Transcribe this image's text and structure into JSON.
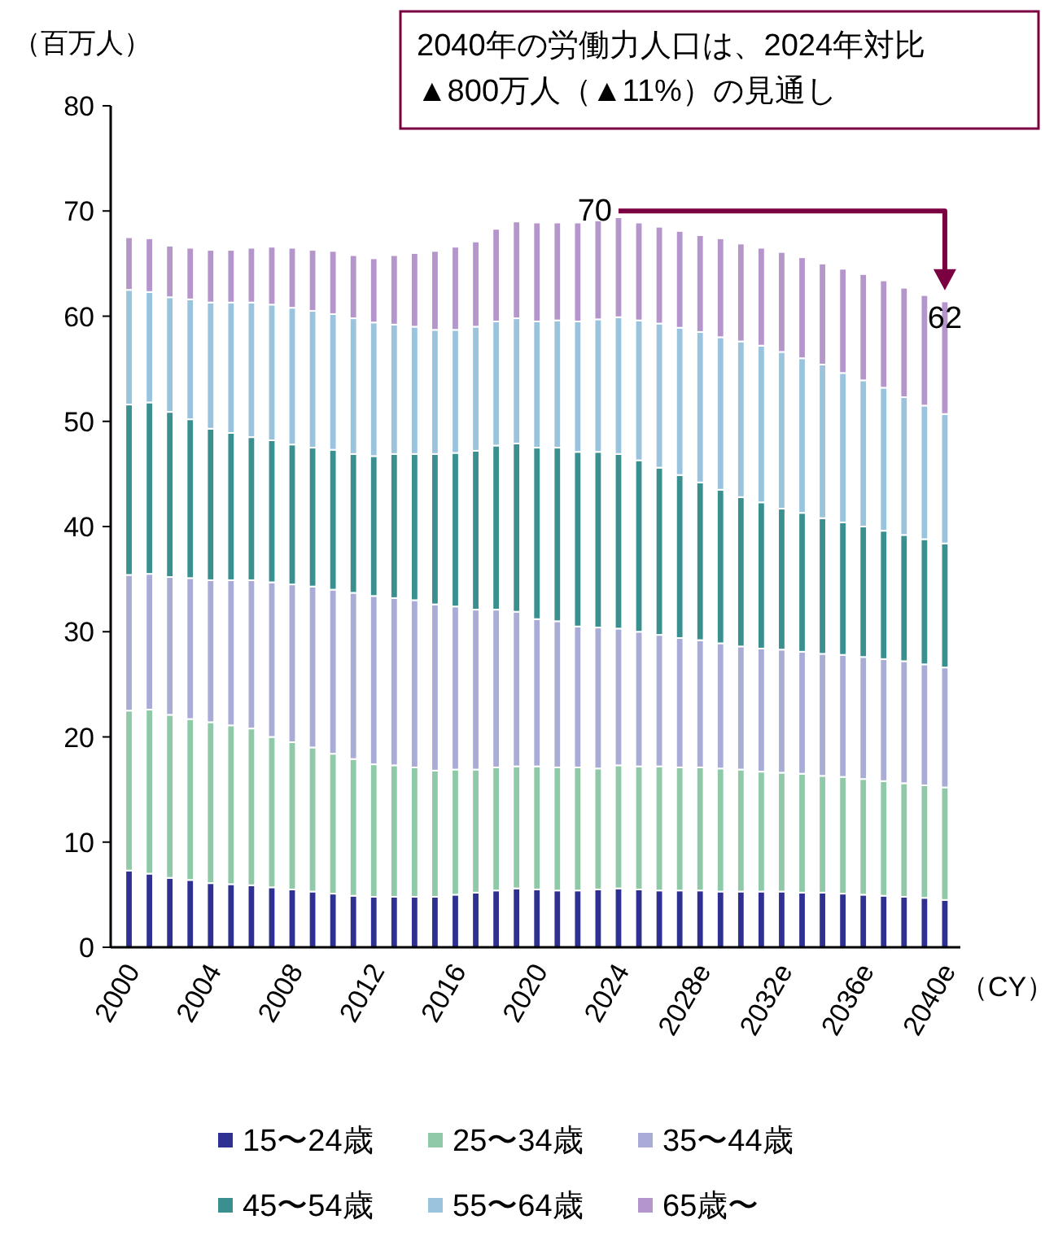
{
  "chart_data": {
    "type": "bar",
    "stacked": true,
    "ylabel": "（百万人）",
    "xlabel": "（CY）",
    "categories": [
      "2000",
      null,
      null,
      null,
      "2004",
      null,
      null,
      null,
      "2008",
      null,
      null,
      null,
      "2012",
      null,
      null,
      null,
      "2016",
      null,
      null,
      null,
      "2020",
      null,
      null,
      null,
      "2024",
      null,
      null,
      null,
      "2028e",
      null,
      null,
      null,
      "2032e",
      null,
      null,
      null,
      "2036e",
      null,
      null,
      null,
      "2040e"
    ],
    "ylim": [
      0,
      80
    ],
    "yticks": [
      0,
      10,
      20,
      30,
      40,
      50,
      60,
      70,
      80
    ],
    "grid": false,
    "legend": "bottom",
    "series": [
      {
        "name": "15〜24歳",
        "color": "#2e3192",
        "values": [
          7.3,
          7.0,
          6.6,
          6.4,
          6.1,
          6.0,
          5.9,
          5.7,
          5.5,
          5.3,
          5.1,
          4.9,
          4.8,
          4.8,
          4.8,
          4.8,
          5.0,
          5.2,
          5.4,
          5.6,
          5.5,
          5.4,
          5.4,
          5.5,
          5.6,
          5.5,
          5.4,
          5.4,
          5.4,
          5.3,
          5.3,
          5.3,
          5.3,
          5.2,
          5.2,
          5.1,
          5.0,
          4.9,
          4.8,
          4.7,
          4.5
        ]
      },
      {
        "name": "25〜34歳",
        "color": "#8fc9a8",
        "values": [
          15.2,
          15.6,
          15.5,
          15.3,
          15.3,
          15.1,
          14.9,
          14.3,
          14.0,
          13.7,
          13.3,
          13.0,
          12.6,
          12.5,
          12.3,
          12.0,
          11.9,
          11.7,
          11.7,
          11.6,
          11.7,
          11.7,
          11.7,
          11.5,
          11.7,
          11.7,
          11.8,
          11.7,
          11.7,
          11.7,
          11.6,
          11.4,
          11.3,
          11.3,
          11.1,
          11.1,
          11.0,
          10.9,
          10.8,
          10.7,
          10.7
        ]
      },
      {
        "name": "35〜44歳",
        "color": "#a9acd6",
        "values": [
          12.9,
          12.9,
          13.1,
          13.4,
          13.5,
          13.8,
          14.1,
          14.7,
          15.0,
          15.3,
          15.6,
          15.8,
          16.0,
          15.9,
          15.9,
          15.8,
          15.5,
          15.2,
          15.0,
          14.7,
          14.0,
          13.9,
          13.4,
          13.4,
          13.0,
          12.8,
          12.5,
          12.3,
          12.1,
          11.9,
          11.7,
          11.7,
          11.7,
          11.6,
          11.6,
          11.6,
          11.6,
          11.6,
          11.6,
          11.5,
          11.4
        ]
      },
      {
        "name": "45〜54歳",
        "color": "#3a8f8f",
        "values": [
          16.2,
          16.3,
          15.7,
          15.1,
          14.4,
          14.0,
          13.6,
          13.5,
          13.3,
          13.2,
          13.3,
          13.2,
          13.3,
          13.7,
          13.9,
          14.3,
          14.6,
          15.1,
          15.6,
          16.0,
          16.3,
          16.5,
          16.6,
          16.7,
          16.6,
          16.3,
          15.9,
          15.5,
          15.0,
          14.6,
          14.2,
          13.9,
          13.4,
          13.2,
          12.9,
          12.6,
          12.4,
          12.2,
          12.0,
          11.9,
          11.8
        ]
      },
      {
        "name": "55〜64歳",
        "color": "#9ac3de",
        "values": [
          10.9,
          10.5,
          10.9,
          11.4,
          12.0,
          12.4,
          12.8,
          12.9,
          13.0,
          13.0,
          12.9,
          12.9,
          12.7,
          12.3,
          12.1,
          11.8,
          11.7,
          11.8,
          11.8,
          11.9,
          12.0,
          12.1,
          12.4,
          12.6,
          13.0,
          13.3,
          13.7,
          14.0,
          14.3,
          14.5,
          14.8,
          14.9,
          14.9,
          14.7,
          14.6,
          14.2,
          13.9,
          13.6,
          13.1,
          12.7,
          12.3
        ]
      },
      {
        "name": "65歳〜",
        "color": "#b596cc",
        "values": [
          5.0,
          5.1,
          4.9,
          4.9,
          5.0,
          5.0,
          5.2,
          5.5,
          5.7,
          5.8,
          6.0,
          6.0,
          6.1,
          6.6,
          7.0,
          7.5,
          7.9,
          8.1,
          8.8,
          9.2,
          9.4,
          9.3,
          9.4,
          9.4,
          9.5,
          9.3,
          9.2,
          9.2,
          9.2,
          9.4,
          9.3,
          9.3,
          9.5,
          9.6,
          9.6,
          9.9,
          10.1,
          10.2,
          10.4,
          10.5,
          10.7
        ]
      }
    ],
    "annotations": [
      "2040年の労働力人口は、2024年対比\n▲800万人（▲11%）の見通し",
      {
        "text": "70",
        "x": "2024",
        "y": 70
      },
      {
        "text": "62",
        "x": "2040e",
        "y": 62
      }
    ]
  }
}
